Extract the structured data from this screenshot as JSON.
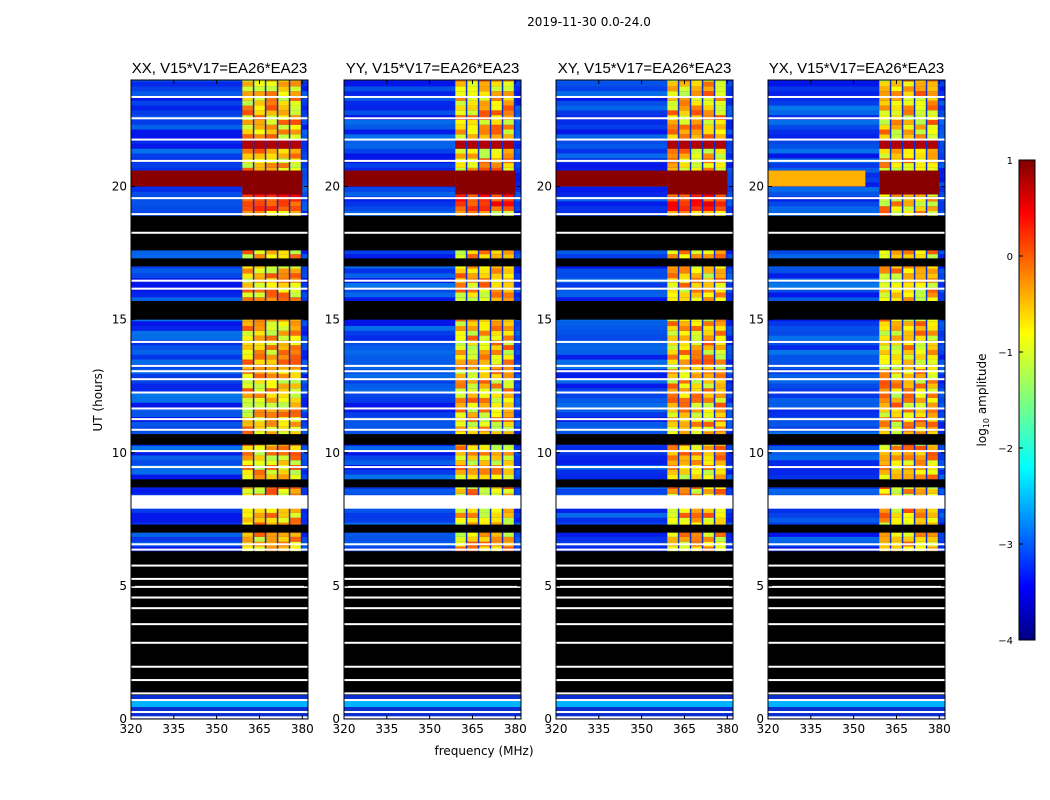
{
  "figure": {
    "suptitle": "2019-11-30 0.0-24.0"
  },
  "chart_data": {
    "type": "heatmap",
    "title": "2019-11-30 0.0-24.0",
    "xlabel": "frequency (MHz)",
    "ylabel": "UT (hours)",
    "xlim": [
      320,
      382
    ],
    "ylim": [
      0,
      24
    ],
    "x_ticks": [
      320,
      335,
      350,
      365,
      380
    ],
    "y_ticks": [
      0,
      5,
      10,
      15,
      20
    ],
    "panels": [
      {
        "title": "XX, V15*V17=EA26*EA23",
        "polarization": "XX"
      },
      {
        "title": "YY, V15*V17=EA26*EA23",
        "polarization": "YY"
      },
      {
        "title": "XY, V15*V17=EA26*EA23",
        "polarization": "XY"
      },
      {
        "title": "YX, V15*V17=EA26*EA23",
        "polarization": "YX"
      }
    ],
    "colorbar": {
      "label": "log",
      "label_sub": "10",
      "label_rest": " amplitude",
      "range": [
        -4,
        1
      ],
      "ticks": [
        1,
        0,
        -1,
        -2,
        -3,
        -4
      ],
      "tick_labels": [
        "1",
        "0",
        "−1",
        "−2",
        "−3",
        "−4"
      ],
      "colormap": "jet"
    },
    "bright_band_mhz": [
      359,
      380
    ],
    "strong_rfi_hours": [
      20.0,
      20.6
    ]
  },
  "colors": {
    "flagged": "#000000",
    "background": "#0a2fd0",
    "jet_low": "#00007f",
    "jet_mid": "#7fff7f",
    "jet_high": "#7f0000"
  }
}
